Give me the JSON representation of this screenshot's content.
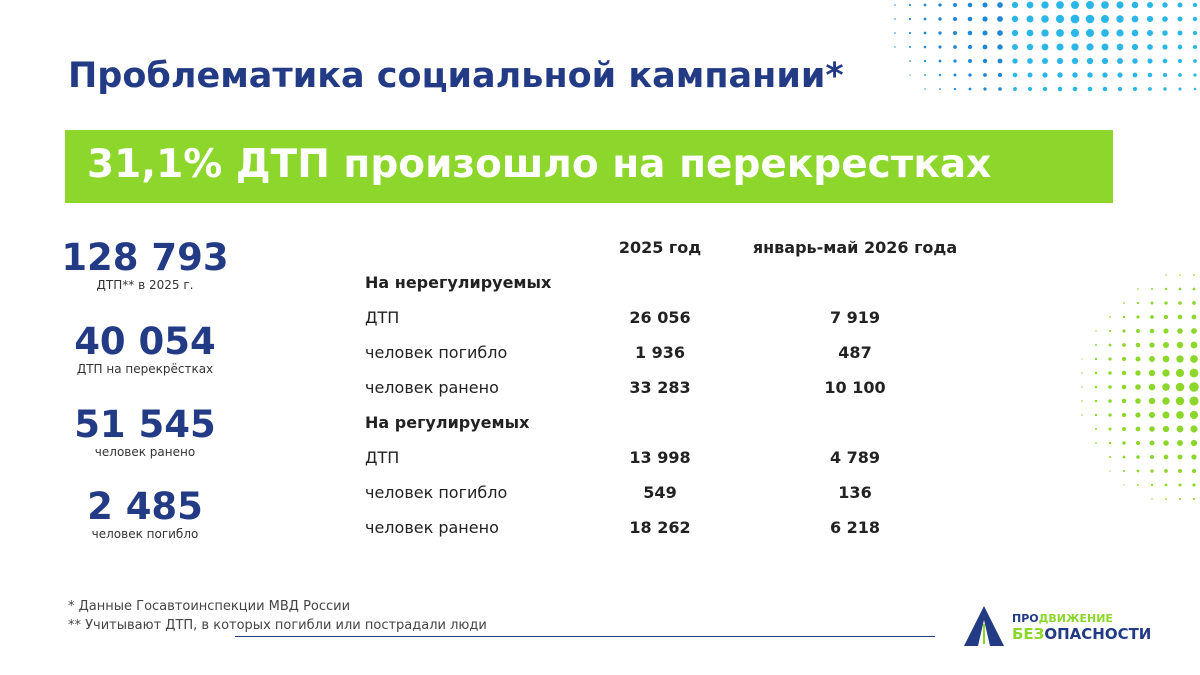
{
  "header": {
    "title": "Проблематика социальной кампании*"
  },
  "banner": {
    "text": "31,1% ДТП произошло на перекрестках"
  },
  "stats": [
    {
      "value": "128 793",
      "label": "ДТП** в 2025 г."
    },
    {
      "value": "40 054",
      "label": "ДТП на перекрёстках"
    },
    {
      "value": "51 545",
      "label": "человек ранено"
    },
    {
      "value": "2 485",
      "label": "человек погибло"
    }
  ],
  "table": {
    "columns": [
      "2025 год",
      "январь-май 2026 года"
    ],
    "sections": [
      {
        "title": "На нерегулируемых",
        "rows": [
          {
            "label": "ДТП",
            "values": [
              "26 056",
              "7 919"
            ]
          },
          {
            "label": "человек погибло",
            "values": [
              "1 936",
              "487"
            ]
          },
          {
            "label": "человек ранено",
            "values": [
              "33 283",
              "10 100"
            ]
          }
        ]
      },
      {
        "title": "На регулируемых",
        "rows": [
          {
            "label": "ДТП",
            "values": [
              "13 998",
              "4 789"
            ]
          },
          {
            "label": "человек погибло",
            "values": [
              "549",
              "136"
            ]
          },
          {
            "label": "человек ранено",
            "values": [
              "18 262",
              "6 218"
            ]
          }
        ]
      }
    ]
  },
  "footnotes": [
    "* Данные Госавтоинспекции МВД России",
    "** Учитывают ДТП, в которых погибли или пострадали люди"
  ],
  "logo": {
    "line1": [
      "ПРО",
      "ДВИЖЕНИЕ"
    ],
    "line2": [
      "БЕЗ",
      "ОПАСНОСТИ"
    ]
  }
}
